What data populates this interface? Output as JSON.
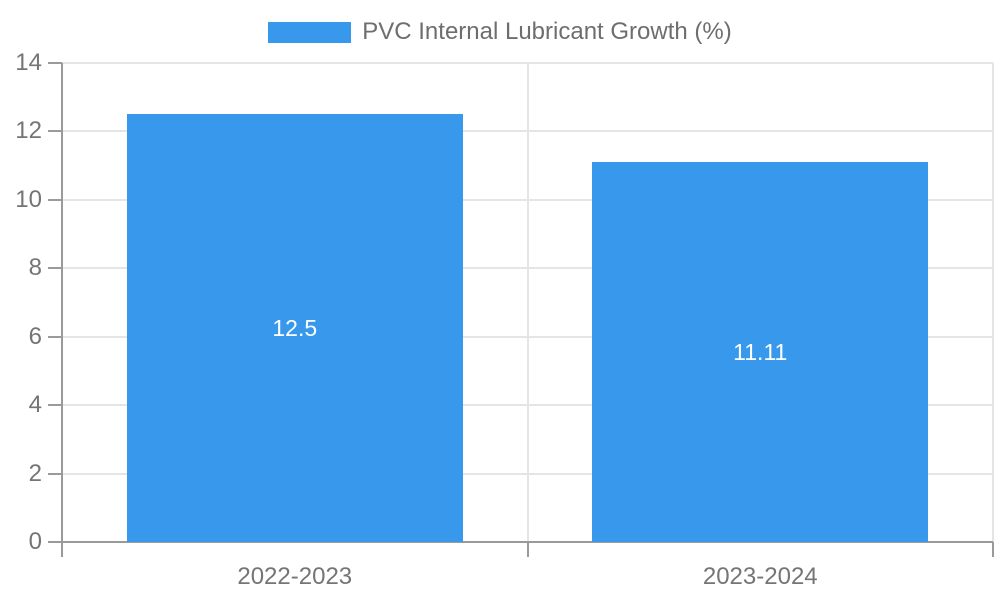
{
  "legend": {
    "label": "PVC Internal Lubricant Growth (%)"
  },
  "colors": {
    "bar": "#3899EC",
    "axis": "#9a9a9a",
    "grid": "#e5e5e5",
    "tick_text": "#757575",
    "legend_text": "#6e6e6e",
    "value_label_text": "#ffffff",
    "background": "#ffffff"
  },
  "chart_data": {
    "type": "bar",
    "title": "PVC Internal Lubricant Growth (%)",
    "categories": [
      "2022-2023",
      "2023-2024"
    ],
    "values": [
      12.5,
      11.11
    ],
    "value_labels": [
      "12.5",
      "11.11"
    ],
    "xlabel": "",
    "ylabel": "",
    "ylim": [
      0,
      14
    ],
    "yticks": [
      0,
      2,
      4,
      6,
      8,
      10,
      12,
      14
    ],
    "grid": true,
    "grid_category_dividers": true,
    "legend_position": "top-center",
    "value_label_position": "inside-center",
    "bar_color": "#3899EC"
  }
}
